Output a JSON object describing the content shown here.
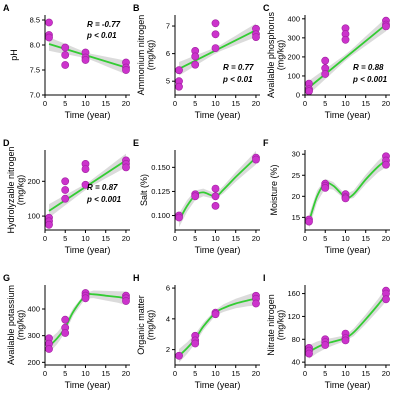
{
  "colors": {
    "point": "#cc33cc",
    "point_stroke": "#a020a0",
    "fit_line": "#33cc33",
    "band": "#cfcfcf",
    "axis": "#000000"
  },
  "chart_data": [
    {
      "letter": "A",
      "type": "scatter",
      "xlabel": "Time (year)",
      "ylabel": "pH",
      "xlim": [
        0,
        21
      ],
      "ylim": [
        7.0,
        8.6
      ],
      "xticks": [
        0,
        5,
        10,
        15,
        20
      ],
      "yticks": [
        7.0,
        7.5,
        8.0,
        8.5
      ],
      "ytick_labels": [
        "7.0",
        "7.5",
        "8.0",
        "8.5"
      ],
      "x": [
        1,
        1,
        1,
        5,
        5,
        5,
        10,
        10,
        10,
        20,
        20,
        20
      ],
      "y": [
        8.45,
        8.2,
        8.15,
        7.95,
        7.8,
        7.6,
        7.85,
        7.75,
        7.7,
        7.65,
        7.55,
        7.5
      ],
      "fit": "linear",
      "fit_y": [
        8.02,
        7.55
      ],
      "stats": [
        "R = -0.77",
        "p < 0.01"
      ]
    },
    {
      "letter": "B",
      "type": "scatter",
      "xlabel": "Time (year)",
      "ylabel": "Ammonium nitrogen (mg/kg)",
      "xlim": [
        0,
        21
      ],
      "ylim": [
        4.5,
        7.4
      ],
      "xticks": [
        0,
        5,
        10,
        15,
        20
      ],
      "yticks": [
        5,
        6,
        7
      ],
      "ytick_labels": [
        "5",
        "6",
        "7"
      ],
      "x": [
        1,
        1,
        1,
        5,
        5,
        5,
        10,
        10,
        10,
        20,
        20,
        20
      ],
      "y": [
        5.4,
        5.0,
        4.8,
        6.1,
        5.9,
        5.6,
        7.1,
        6.7,
        6.2,
        6.9,
        6.7,
        6.6
      ],
      "fit": "linear",
      "fit_y": [
        5.45,
        6.85
      ],
      "stats": [
        "R = 0.77",
        "p < 0.01"
      ]
    },
    {
      "letter": "C",
      "type": "scatter",
      "xlabel": "Time (year)",
      "ylabel": "Available phosphorus (mg/kg)",
      "xlim": [
        0,
        21
      ],
      "ylim": [
        0,
        420
      ],
      "xticks": [
        0,
        5,
        10,
        15,
        20
      ],
      "yticks": [
        0,
        100,
        200,
        300,
        400
      ],
      "ytick_labels": [
        "0",
        "100",
        "200",
        "300",
        "400"
      ],
      "x": [
        1,
        1,
        1,
        5,
        5,
        5,
        10,
        10,
        10,
        20,
        20,
        20
      ],
      "y": [
        60,
        30,
        20,
        180,
        140,
        110,
        350,
        320,
        290,
        390,
        370,
        360
      ],
      "fit": "linear",
      "fit_y": [
        40,
        370
      ],
      "stats": [
        "R = 0.88",
        "p < 0.001"
      ]
    },
    {
      "letter": "D",
      "type": "scatter",
      "xlabel": "Time (year)",
      "ylabel": "Hydrolyzable nitrogen (mg/kg)",
      "xlim": [
        0,
        21
      ],
      "ylim": [
        60,
        290
      ],
      "xticks": [
        0,
        5,
        10,
        15,
        20
      ],
      "yticks": [
        100,
        200
      ],
      "ytick_labels": [
        "100",
        "200"
      ],
      "x": [
        1,
        1,
        1,
        5,
        5,
        5,
        10,
        10,
        10,
        20,
        20,
        20
      ],
      "y": [
        95,
        85,
        75,
        200,
        175,
        150,
        250,
        235,
        190,
        260,
        250,
        240
      ],
      "fit": "linear",
      "fit_y": [
        115,
        260
      ],
      "stats": [
        "R = 0.87",
        "p < 0.001"
      ]
    },
    {
      "letter": "E",
      "type": "scatter",
      "xlabel": "Time (year)",
      "ylabel": "Salt (%)",
      "xlim": [
        0,
        21
      ],
      "ylim": [
        0.085,
        0.168
      ],
      "xticks": [
        0,
        5,
        10,
        15,
        20
      ],
      "yticks": [
        0.1,
        0.125,
        0.15
      ],
      "ytick_labels": [
        "0.100",
        "0.125",
        "0.150"
      ],
      "x": [
        1,
        1,
        5,
        5,
        10,
        10,
        10,
        20,
        20
      ],
      "y": [
        0.1,
        0.098,
        0.122,
        0.12,
        0.128,
        0.12,
        0.11,
        0.16,
        0.158
      ],
      "fit": "smooth",
      "fit_x": [
        1,
        3,
        5,
        7,
        10,
        12,
        15,
        18,
        20
      ],
      "fit_y": [
        0.095,
        0.11,
        0.121,
        0.124,
        0.12,
        0.127,
        0.14,
        0.152,
        0.16
      ]
    },
    {
      "letter": "F",
      "type": "scatter",
      "xlabel": "Time (year)",
      "ylabel": "Moisture (%)",
      "xlim": [
        0,
        21
      ],
      "ylim": [
        12,
        31
      ],
      "xticks": [
        0,
        5,
        10,
        15,
        20
      ],
      "yticks": [
        15,
        20,
        25,
        30
      ],
      "ytick_labels": [
        "15",
        "20",
        "25",
        "30"
      ],
      "x": [
        1,
        1,
        5,
        5,
        5,
        10,
        10,
        10,
        20,
        20,
        20
      ],
      "y": [
        14.5,
        14.0,
        23.0,
        22.5,
        22.0,
        20.5,
        19.8,
        19.5,
        29.5,
        28.5,
        27.5
      ],
      "fit": "smooth",
      "fit_x": [
        1,
        3,
        5,
        7,
        10,
        12,
        15,
        18,
        20
      ],
      "fit_y": [
        14.0,
        20.0,
        23.0,
        22.5,
        19.8,
        20.5,
        24.0,
        27.0,
        28.5
      ]
    },
    {
      "letter": "G",
      "type": "scatter",
      "xlabel": "Time (year)",
      "ylabel": "Available potassium (mg/kg)",
      "xlim": [
        0,
        21
      ],
      "ylim": [
        190,
        490
      ],
      "xticks": [
        0,
        5,
        10,
        15,
        20
      ],
      "yticks": [
        200,
        300,
        400
      ],
      "ytick_labels": [
        "200",
        "300",
        "400"
      ],
      "x": [
        1,
        1,
        1,
        5,
        5,
        5,
        10,
        10,
        10,
        20,
        20,
        20
      ],
      "y": [
        290,
        270,
        250,
        360,
        330,
        310,
        460,
        450,
        440,
        450,
        440,
        430
      ],
      "fit": "smooth",
      "fit_x": [
        1,
        3,
        5,
        7,
        10,
        12,
        15,
        18,
        20
      ],
      "fit_y": [
        260,
        290,
        330,
        390,
        450,
        455,
        450,
        445,
        440
      ]
    },
    {
      "letter": "H",
      "type": "scatter",
      "xlabel": "Time (year)",
      "ylabel": "Organic matter (mg/kg)",
      "xlim": [
        0,
        21
      ],
      "ylim": [
        1.0,
        6.2
      ],
      "xticks": [
        0,
        5,
        10,
        15,
        20
      ],
      "yticks": [
        2,
        4,
        6
      ],
      "ytick_labels": [
        "2",
        "4",
        "6"
      ],
      "x": [
        1,
        5,
        5,
        5,
        10,
        10,
        20,
        20,
        20
      ],
      "y": [
        1.6,
        2.9,
        2.6,
        2.4,
        4.4,
        4.3,
        5.5,
        5.3,
        5.0
      ],
      "fit": "smooth",
      "fit_x": [
        1,
        3,
        5,
        7,
        10,
        12,
        15,
        18,
        20
      ],
      "fit_y": [
        1.6,
        2.1,
        2.7,
        3.5,
        4.4,
        4.7,
        5.0,
        5.2,
        5.3
      ]
    },
    {
      "letter": "I",
      "type": "scatter",
      "xlabel": "Time (year)",
      "ylabel": "Nitrate nitrogen (mg/kg)",
      "xlim": [
        0,
        21
      ],
      "ylim": [
        35,
        175
      ],
      "xticks": [
        0,
        5,
        10,
        15,
        20
      ],
      "yticks": [
        40,
        80,
        120,
        160
      ],
      "ytick_labels": [
        "40",
        "80",
        "120",
        "160"
      ],
      "x": [
        1,
        1,
        1,
        5,
        5,
        5,
        10,
        10,
        10,
        20,
        20,
        20
      ],
      "y": [
        65,
        60,
        55,
        80,
        75,
        70,
        90,
        82,
        78,
        165,
        160,
        150
      ],
      "fit": "smooth",
      "fit_x": [
        1,
        3,
        5,
        7,
        10,
        12,
        15,
        18,
        20
      ],
      "fit_y": [
        58,
        66,
        72,
        76,
        82,
        92,
        115,
        140,
        158
      ]
    }
  ]
}
